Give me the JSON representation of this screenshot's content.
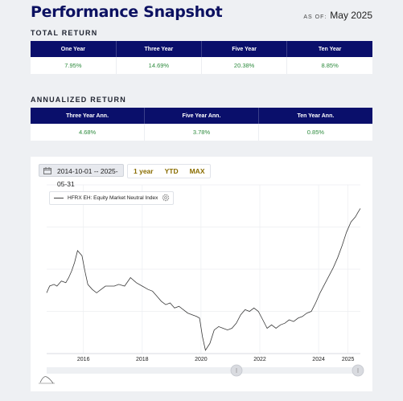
{
  "header": {
    "title": "Performance Snapshot",
    "as_of_label": "AS OF:",
    "as_of_value": "May 2025"
  },
  "total_return": {
    "label": "TOTAL RETURN",
    "columns": [
      "One Year",
      "Three Year",
      "Five Year",
      "Ten Year"
    ],
    "values": [
      "7.95%",
      "14.69%",
      "20.38%",
      "8.85%"
    ]
  },
  "annualized_return": {
    "label": "ANNUALIZED RETURN",
    "columns": [
      "Three Year Ann.",
      "Five Year Ann.",
      "Ten Year Ann."
    ],
    "values": [
      "4.68%",
      "3.78%",
      "0.85%"
    ]
  },
  "chart_toolbar": {
    "date_range": "2014-10-01 -- 2025-05-31",
    "buttons": [
      "1 year",
      "YTD",
      "MAX"
    ]
  },
  "colors": {
    "navy": "#0a0f6b",
    "positive": "#2e8b3e",
    "accent": "#8a6d00"
  },
  "chart_data": {
    "type": "line",
    "series": [
      {
        "name": "HFRX EH: Equity Market Neutral Index",
        "x": [
          2014.75,
          2014.85,
          2015.0,
          2015.1,
          2015.25,
          2015.4,
          2015.5,
          2015.6,
          2015.7,
          2015.8,
          2015.95,
          2016.05,
          2016.15,
          2016.3,
          2016.45,
          2016.6,
          2016.75,
          2016.9,
          2017.05,
          2017.2,
          2017.4,
          2017.6,
          2017.8,
          2018.0,
          2018.2,
          2018.35,
          2018.5,
          2018.65,
          2018.8,
          2018.95,
          2019.1,
          2019.25,
          2019.4,
          2019.55,
          2019.7,
          2019.85,
          2019.95,
          2020.05,
          2020.15,
          2020.3,
          2020.45,
          2020.6,
          2020.75,
          2020.9,
          2021.05,
          2021.2,
          2021.35,
          2021.5,
          2021.65,
          2021.8,
          2021.95,
          2022.1,
          2022.25,
          2022.4,
          2022.55,
          2022.7,
          2022.85,
          2023.0,
          2023.15,
          2023.3,
          2023.45,
          2023.6,
          2023.75,
          2023.9,
          2024.05,
          2024.2,
          2024.35,
          2024.5,
          2024.65,
          2024.8,
          2024.95,
          2025.1,
          2025.25,
          2025.35,
          2025.42
        ],
        "values": [
          36,
          40,
          41,
          40,
          43,
          42,
          45,
          49,
          54,
          61,
          58,
          49,
          41,
          38,
          36,
          38,
          40,
          40,
          40,
          41,
          40,
          45,
          42,
          40,
          38,
          37,
          34,
          31,
          29,
          30,
          27,
          28,
          26,
          24,
          23,
          22,
          21,
          10,
          2,
          6,
          14,
          16,
          15,
          14,
          15,
          18,
          23,
          26,
          25,
          27,
          25,
          20,
          15,
          17,
          15,
          17,
          18,
          20,
          19,
          21,
          22,
          24,
          25,
          30,
          36,
          41,
          46,
          51,
          57,
          64,
          72,
          78,
          81,
          84,
          86
        ]
      }
    ],
    "x_ticks": [
      "2016",
      "2018",
      "2020",
      "2022",
      "2024",
      "2025"
    ],
    "x_range": [
      2014.75,
      2025.42
    ],
    "grid": true,
    "legend": "top-left"
  }
}
